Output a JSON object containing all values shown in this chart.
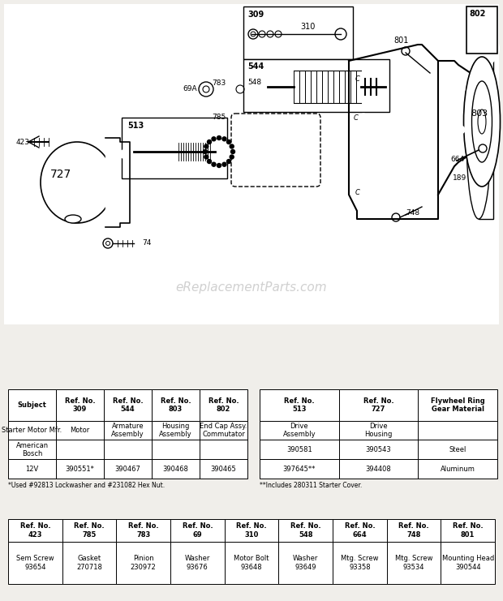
{
  "bg_color": "#f0eeea",
  "watermark": "eReplacementParts.com",
  "table1_headers": [
    "Subject",
    "Ref. No.\n309",
    "Ref. No.\n544",
    "Ref. No.\n803",
    "Ref. No.\n802"
  ],
  "table1_rows": [
    [
      "Starter Motor Mfr.",
      "Motor",
      "Armature\nAssembly",
      "Housing\nAssembly",
      "End Cap Assy.\nCommutator"
    ],
    [
      "American\nBosch",
      "",
      "",
      "",
      ""
    ],
    [
      "12V",
      "390551*",
      "390467",
      "390468",
      "390465"
    ]
  ],
  "table1_footnote": "*Used #92813 Lockwasher and #231082 Hex Nut.",
  "table2_headers": [
    "Ref. No.\n513",
    "Ref. No.\n727",
    "Flywheel Ring\nGear Material"
  ],
  "table2_rows": [
    [
      "Drive\nAssembly",
      "Drive\nHousing",
      ""
    ],
    [
      "390581",
      "390543",
      "Steel"
    ],
    [
      "397645**",
      "394408",
      "Aluminum"
    ]
  ],
  "table2_footnote": "**Includes 280311 Starter Cover.",
  "table3_headers": [
    "Ref. No.\n423",
    "Ref. No.\n785",
    "Ref. No.\n783",
    "Ref. No.\n69",
    "Ref. No.\n310",
    "Ref. No.\n548",
    "Ref. No.\n664",
    "Ref. No.\n748",
    "Ref. No.\n801"
  ],
  "table3_rows": [
    [
      "Sem Screw\n93654",
      "Gasket\n270718",
      "Pinion\n230972",
      "Washer\n93676",
      "Motor Bolt\n93648",
      "Washer\n93649",
      "Mtg. Screw\n93358",
      "Mtg. Screw\n93534",
      "Mounting Head\n390544"
    ]
  ]
}
